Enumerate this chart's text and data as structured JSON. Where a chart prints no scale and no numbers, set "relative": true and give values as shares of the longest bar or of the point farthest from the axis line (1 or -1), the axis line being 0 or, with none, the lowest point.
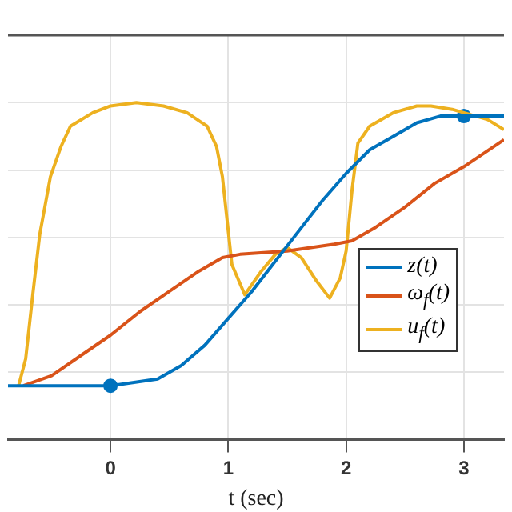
{
  "chart_data": {
    "type": "line",
    "relative": true,
    "xlabel": "t (sec)",
    "xlim": [
      -0.87,
      3.34
    ],
    "xticks": [
      0,
      1,
      2,
      3
    ],
    "grid": true,
    "legend": "right",
    "marker": "none",
    "line_style": "solid",
    "series": [
      {
        "name": "z(t)",
        "color": "#0072bd",
        "x": [
          -0.87,
          0,
          0.2,
          0.4,
          0.6,
          0.8,
          1.0,
          1.2,
          1.4,
          1.6,
          1.8,
          2.0,
          2.2,
          2.4,
          2.6,
          2.8,
          3.0,
          3.34
        ],
        "values": [
          0.16,
          0.16,
          0.17,
          0.18,
          0.22,
          0.28,
          0.36,
          0.44,
          0.53,
          0.62,
          0.71,
          0.79,
          0.86,
          0.9,
          0.94,
          0.96,
          0.96,
          0.96
        ]
      },
      {
        "name": "ω$_{f}$(t)",
        "color": "#d95319",
        "x": [
          -0.74,
          -0.5,
          -0.25,
          0,
          0.25,
          0.5,
          0.75,
          0.95,
          1.1,
          1.5,
          1.9,
          2.05,
          2.25,
          2.5,
          2.75,
          3.0,
          3.34
        ],
        "values": [
          0.16,
          0.19,
          0.25,
          0.31,
          0.38,
          0.44,
          0.5,
          0.54,
          0.55,
          0.56,
          0.58,
          0.59,
          0.63,
          0.69,
          0.76,
          0.81,
          0.89
        ]
      },
      {
        "name": "u$_{f}$(t)",
        "color": "#edb120",
        "x": [
          -0.78,
          -0.72,
          -0.66,
          -0.6,
          -0.51,
          -0.42,
          -0.34,
          -0.15,
          0,
          0.22,
          0.45,
          0.65,
          0.82,
          0.9,
          0.95,
          0.99,
          1.03,
          1.14,
          1.28,
          1.4,
          1.5,
          1.62,
          1.75,
          1.86,
          1.95,
          2.0,
          2.05,
          2.1,
          2.2,
          2.4,
          2.6,
          2.72,
          2.9,
          3.0,
          3.2,
          3.34
        ],
        "values": [
          0.16,
          0.24,
          0.43,
          0.61,
          0.78,
          0.87,
          0.93,
          0.97,
          0.99,
          1,
          0.99,
          0.97,
          0.93,
          0.87,
          0.78,
          0.65,
          0.52,
          0.43,
          0.5,
          0.55,
          0.57,
          0.54,
          0.47,
          0.42,
          0.48,
          0.56,
          0.74,
          0.88,
          0.93,
          0.97,
          0.99,
          0.99,
          0.98,
          0.97,
          0.95,
          0.92
        ]
      },
      {
        "type": "scatter",
        "marker": "circle",
        "color": "#0072bd",
        "x": [
          0,
          3
        ],
        "values": [
          0.16,
          0.96
        ]
      }
    ]
  }
}
